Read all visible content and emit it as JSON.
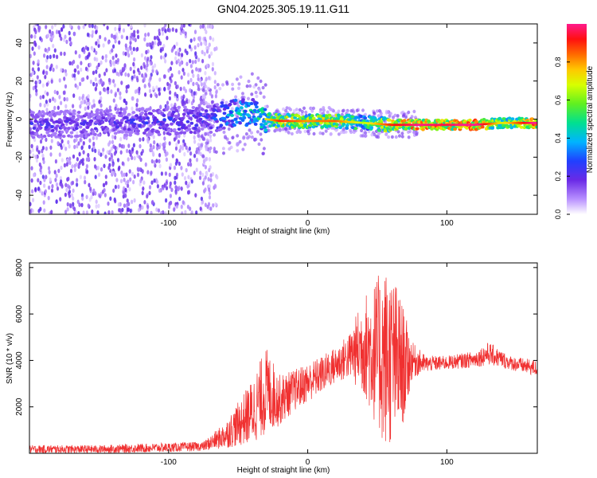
{
  "title": "GN04.2025.305.19.11.G11",
  "colors": {
    "snr_line": "#f03030",
    "frame": "#000000",
    "colormap": [
      "#ffffff",
      "#a050ff",
      "#5a1ee6",
      "#1e5aff",
      "#00c8ff",
      "#00e070",
      "#8cff00",
      "#ffd200",
      "#ff5a00",
      "#ff0000",
      "#ff1a8c"
    ]
  },
  "chart_data": [
    {
      "type": "heatmap",
      "title": "GN04.2025.305.19.11.G11",
      "xlabel": "Height of straight line (km)",
      "ylabel": "Frequency (Hz)",
      "xlim": [
        -200,
        165
      ],
      "ylim": [
        -50,
        50
      ],
      "xticks": [
        -100,
        0,
        100
      ],
      "yticks": [
        -40,
        -20,
        0,
        20,
        40
      ],
      "grid": false,
      "colorbar": {
        "label": "Normalized spectral amplitude",
        "range": [
          0,
          1
        ],
        "ticks": [
          "0.0",
          "0.2",
          "0.4",
          "0.6",
          "0.8"
        ]
      },
      "ridge": {
        "description_points_km_hz_amp": [
          [
            -200,
            -3,
            0.25
          ],
          [
            -150,
            -2,
            0.25
          ],
          [
            -100,
            -1,
            0.28
          ],
          [
            -70,
            0,
            0.3
          ],
          [
            -55,
            3,
            0.45
          ],
          [
            -40,
            4,
            0.5
          ],
          [
            -30,
            0,
            0.6
          ],
          [
            -20,
            -1,
            0.8
          ],
          [
            0,
            -1,
            0.7
          ],
          [
            20,
            -1,
            0.75
          ],
          [
            40,
            -2,
            0.55
          ],
          [
            60,
            -3,
            0.8
          ],
          [
            80,
            -3,
            0.9
          ],
          [
            100,
            -3,
            0.85
          ],
          [
            120,
            -3,
            0.95
          ],
          [
            140,
            -2,
            0.6
          ],
          [
            165,
            -2,
            0.95
          ]
        ]
      }
    },
    {
      "type": "line",
      "xlabel": "Height of straight line (km)",
      "ylabel": "SNR (10 * v/v)",
      "xlim": [
        -200,
        165
      ],
      "ylim": [
        0,
        8200
      ],
      "xticks": [
        -100,
        0,
        100
      ],
      "yticks": [
        2000,
        4000,
        6000,
        8000
      ],
      "grid": false,
      "series": [
        {
          "envelope_km_low_high": [
            [
              -200,
              0,
              350
            ],
            [
              -150,
              0,
              350
            ],
            [
              -100,
              50,
              450
            ],
            [
              -75,
              100,
              500
            ],
            [
              -60,
              200,
              1300
            ],
            [
              -50,
              300,
              2200
            ],
            [
              -40,
              400,
              3200
            ],
            [
              -30,
              800,
              4600
            ],
            [
              -20,
              1200,
              3400
            ],
            [
              -10,
              1800,
              3600
            ],
            [
              0,
              2200,
              3900
            ],
            [
              10,
              2600,
              4200
            ],
            [
              20,
              3000,
              4600
            ],
            [
              30,
              3200,
              5200
            ],
            [
              40,
              2500,
              6800
            ],
            [
              50,
              1000,
              7600
            ],
            [
              55,
              200,
              8100
            ],
            [
              60,
              300,
              7800
            ],
            [
              65,
              600,
              7200
            ],
            [
              70,
              1500,
              6000
            ],
            [
              75,
              3200,
              4800
            ],
            [
              85,
              3500,
              4200
            ],
            [
              100,
              3600,
              4200
            ],
            [
              120,
              3700,
              4400
            ],
            [
              130,
              3800,
              4800
            ],
            [
              145,
              3600,
              4200
            ],
            [
              165,
              3300,
              4000
            ]
          ]
        }
      ]
    }
  ]
}
